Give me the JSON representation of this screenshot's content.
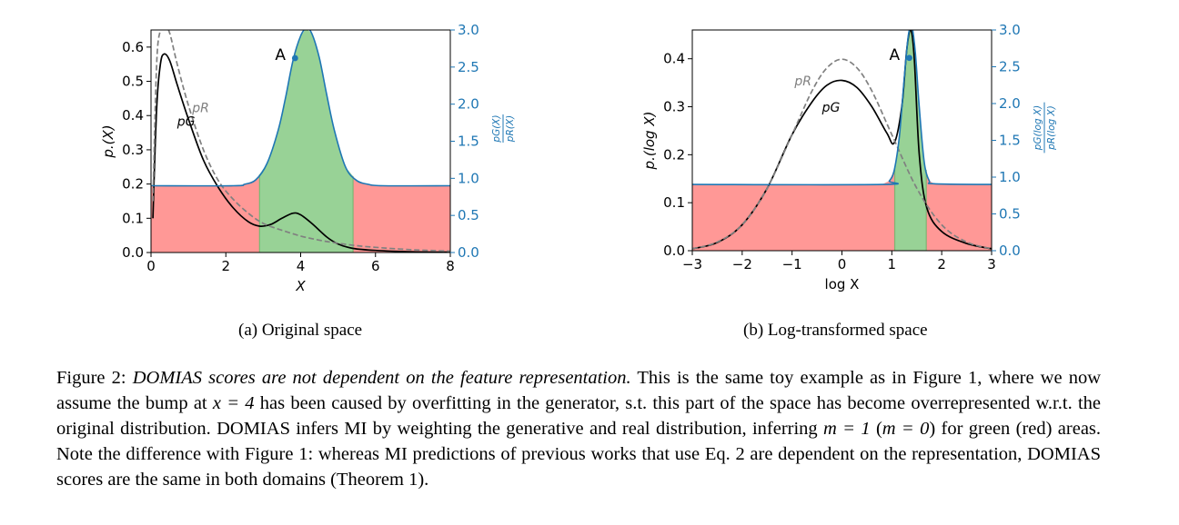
{
  "figure": {
    "caption_label": "Figure 2:",
    "caption_title": "DOMIAS scores are not dependent on the feature representation.",
    "caption_body_1": " This is the same toy example as in Figure 1, where we now assume the bump at ",
    "caption_math_1": "x = 4",
    "caption_body_2": " has been caused by overfitting in the generator, s.t. this part of the space has become overrepresented w.r.t. the original distribution. DOMIAS infers MI by weighting the generative and real distribution, inferring ",
    "caption_math_2": "m = 1",
    "caption_body_3": " (",
    "caption_math_3": "m = 0",
    "caption_body_4": ") for green (red) areas. Note the difference with Figure 1: whereas MI predictions of previous works that use Eq. 2 are dependent on the representation, DOMIAS scores are the same in both domains (Theorem 1)."
  },
  "chart_data": [
    {
      "type": "line",
      "subcaption": "(a) Original space",
      "xlabel": "X",
      "ylabel_left": "p.(X)",
      "ylabel_right": "pG(X) / pR(X)",
      "xlim": [
        0,
        8
      ],
      "ylim_left": [
        0,
        0.65
      ],
      "ylim_right": [
        0,
        3.0
      ],
      "xticks": [
        "0",
        "2",
        "4",
        "6",
        "8"
      ],
      "yticks_left": [
        "0.0",
        "0.1",
        "0.2",
        "0.3",
        "0.4",
        "0.5",
        "0.6"
      ],
      "yticks_right": [
        "0.0",
        "0.5",
        "1.0",
        "1.5",
        "2.0",
        "2.5",
        "3.0"
      ],
      "green_region": [
        2.9,
        5.4
      ],
      "series": [
        {
          "name": "pG",
          "style": "solid",
          "color": "#000000",
          "x": [
            0.05,
            0.15,
            0.25,
            0.35,
            0.5,
            0.7,
            1.0,
            1.4,
            1.8,
            2.2,
            2.6,
            2.9,
            3.2,
            3.5,
            3.8,
            4.0,
            4.3,
            4.7,
            5.0,
            5.4,
            6.0,
            7.0,
            8.0
          ],
          "y": [
            0.1,
            0.42,
            0.55,
            0.58,
            0.56,
            0.49,
            0.39,
            0.27,
            0.19,
            0.13,
            0.09,
            0.077,
            0.082,
            0.1,
            0.115,
            0.11,
            0.085,
            0.045,
            0.025,
            0.012,
            0.006,
            0.002,
            0.001
          ]
        },
        {
          "name": "pR",
          "style": "dashed",
          "color": "#808080",
          "x": [
            0.05,
            0.15,
            0.25,
            0.35,
            0.5,
            0.7,
            1.0,
            1.4,
            1.8,
            2.2,
            2.6,
            3.0,
            3.5,
            4.0,
            4.5,
            5.0,
            5.5,
            6.0,
            7.0,
            8.0
          ],
          "y": [
            0.15,
            0.55,
            0.65,
            0.67,
            0.64,
            0.55,
            0.43,
            0.3,
            0.21,
            0.155,
            0.115,
            0.085,
            0.065,
            0.048,
            0.036,
            0.027,
            0.02,
            0.015,
            0.008,
            0.004
          ]
        },
        {
          "name": "ratio",
          "style": "solid",
          "color": "#1f77b4",
          "x": [
            0.0,
            2.2,
            2.5,
            2.8,
            3.1,
            3.4,
            3.6,
            3.8,
            4.0,
            4.15,
            4.3,
            4.5,
            4.7,
            4.9,
            5.2,
            5.5,
            5.8,
            6.2,
            8.0
          ],
          "y": [
            0.9,
            0.9,
            0.92,
            0.98,
            1.2,
            1.65,
            2.1,
            2.6,
            2.92,
            3.02,
            2.95,
            2.62,
            2.12,
            1.65,
            1.15,
            0.97,
            0.92,
            0.9,
            0.9
          ]
        }
      ],
      "annotations": [
        {
          "text": "A",
          "x": 3.85,
          "y_right": 2.62
        }
      ],
      "series_labels": [
        {
          "text": "pG",
          "x": 0.7,
          "y": 0.37
        },
        {
          "text": "pR",
          "x": 1.1,
          "y": 0.41
        }
      ]
    },
    {
      "type": "line",
      "subcaption": "(b) Log-transformed space",
      "xlabel": "log X",
      "ylabel_left": "p.(log X)",
      "ylabel_right": "pG(log X) / pR(log X)",
      "xlim": [
        -3,
        3
      ],
      "ylim_left": [
        0,
        0.46
      ],
      "ylim_right": [
        0,
        3.0
      ],
      "xticks": [
        "−3",
        "−2",
        "−1",
        "0",
        "1",
        "2",
        "3"
      ],
      "yticks_left": [
        "0.0",
        "0.1",
        "0.2",
        "0.3",
        "0.4"
      ],
      "yticks_right": [
        "0.0",
        "0.5",
        "1.0",
        "1.5",
        "2.0",
        "2.5",
        "3.0"
      ],
      "green_region": [
        1.06,
        1.69
      ],
      "series": [
        {
          "name": "pG",
          "style": "solid",
          "color": "#000000",
          "x": [
            -3.0,
            -2.5,
            -2.0,
            -1.5,
            -1.0,
            -0.6,
            -0.3,
            0.0,
            0.3,
            0.6,
            0.9,
            1.05,
            1.2,
            1.3,
            1.38,
            1.45,
            1.55,
            1.7,
            2.0,
            2.5,
            3.0
          ],
          "y": [
            0.004,
            0.017,
            0.054,
            0.13,
            0.242,
            0.31,
            0.345,
            0.355,
            0.34,
            0.3,
            0.245,
            0.225,
            0.3,
            0.42,
            0.46,
            0.4,
            0.2,
            0.09,
            0.04,
            0.015,
            0.004
          ]
        },
        {
          "name": "pR",
          "style": "dashed",
          "color": "#808080",
          "x": [
            -3.0,
            -2.5,
            -2.0,
            -1.5,
            -1.0,
            -0.6,
            -0.3,
            0.0,
            0.3,
            0.6,
            1.0,
            1.5,
            2.0,
            2.5,
            3.0
          ],
          "y": [
            0.004,
            0.018,
            0.054,
            0.13,
            0.242,
            0.333,
            0.381,
            0.399,
            0.381,
            0.333,
            0.242,
            0.13,
            0.054,
            0.018,
            0.004
          ]
        },
        {
          "name": "ratio",
          "style": "solid",
          "color": "#1f77b4",
          "x": [
            -3.0,
            0.8,
            0.95,
            1.05,
            1.15,
            1.25,
            1.33,
            1.4,
            1.47,
            1.55,
            1.65,
            1.75,
            1.85,
            3.0
          ],
          "y": [
            0.9,
            0.9,
            0.95,
            1.1,
            1.55,
            2.35,
            2.92,
            3.05,
            2.7,
            1.95,
            1.2,
            0.95,
            0.91,
            0.9
          ]
        }
      ],
      "annotations": [
        {
          "text": "A",
          "x": 1.35,
          "y_right": 2.62
        }
      ],
      "series_labels": [
        {
          "text": "pR",
          "x": -0.95,
          "y": 0.345
        },
        {
          "text": "pG",
          "x": -0.4,
          "y": 0.29
        }
      ]
    }
  ]
}
